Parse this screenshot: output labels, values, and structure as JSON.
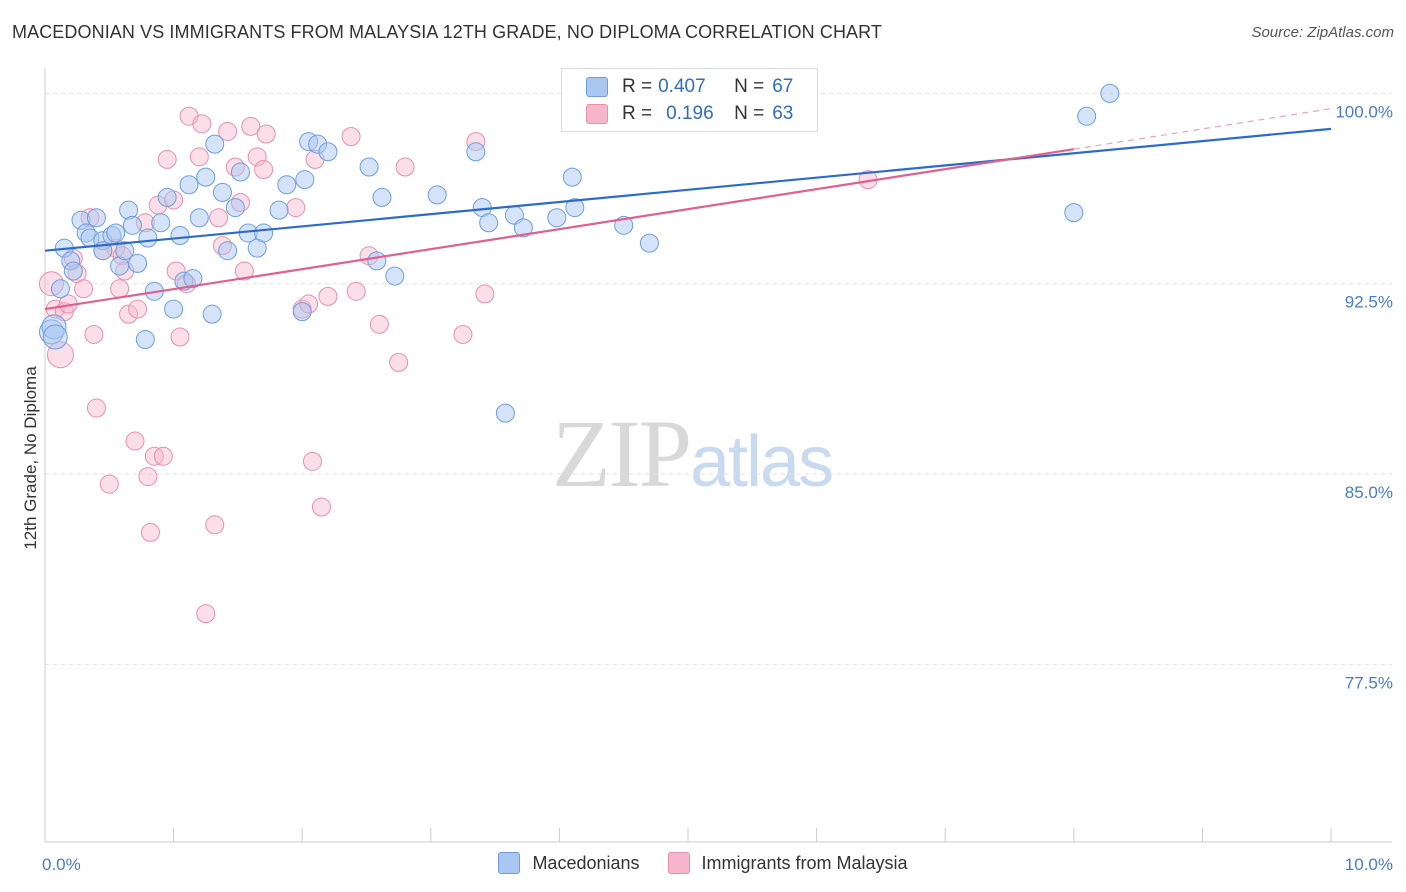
{
  "header": {
    "title": "MACEDONIAN VS IMMIGRANTS FROM MALAYSIA 12TH GRADE, NO DIPLOMA CORRELATION CHART",
    "source": "Source: ZipAtlas.com"
  },
  "watermark": {
    "zip": "ZIP",
    "atlas": "atlas"
  },
  "legend": {
    "rows": [
      {
        "r_label": "R =",
        "r_value": "0.407",
        "n_label": "N =",
        "n_value": "67",
        "color": "#a9c7f0"
      },
      {
        "r_label": "R =",
        "r_value": "0.196",
        "n_label": "N =",
        "n_value": "63",
        "color": "#f5b6cc"
      }
    ]
  },
  "bottom_legend": {
    "items": [
      {
        "label": "Macedonians",
        "color": "#a9c7f0"
      },
      {
        "label": "Immigrants from Malaysia",
        "color": "#f5b6cc"
      }
    ]
  },
  "colors": {
    "blue_fill": "#a9c7f0",
    "blue_stroke": "#6e9ee0",
    "blue_line": "#2b6cc9",
    "pink_fill": "#f5b6cc",
    "pink_stroke": "#ea8fae",
    "pink_line": "#e0608e",
    "grid": "#e2e2e2",
    "axis_label": "#4a7bc8"
  },
  "chart_data": {
    "type": "scatter",
    "title": "MACEDONIAN VS IMMIGRANTS FROM MALAYSIA 12TH GRADE, NO DIPLOMA CORRELATION CHART",
    "xlabel": "",
    "ylabel": "12th Grade, No Diploma",
    "xlim": [
      0,
      10
    ],
    "ylim": [
      70.5,
      101
    ],
    "x_tick_labels": [
      {
        "value": 0,
        "label": "0.0%"
      },
      {
        "value": 10,
        "label": "10.0%"
      }
    ],
    "y_tick_labels": [
      {
        "value": 100,
        "label": "100.0%"
      },
      {
        "value": 92.5,
        "label": "92.5%"
      },
      {
        "value": 85,
        "label": "85.0%"
      },
      {
        "value": 77.5,
        "label": "77.5%"
      }
    ],
    "series": [
      {
        "name": "Macedonians",
        "r": 0.407,
        "n": 67,
        "trend": {
          "x": [
            0,
            10
          ],
          "y": [
            93.8,
            98.6
          ]
        },
        "points": [
          [
            0.05,
            90.6
          ],
          [
            0.07,
            90.8
          ],
          [
            0.08,
            90.4
          ],
          [
            0.12,
            92.3
          ],
          [
            0.15,
            93.9
          ],
          [
            0.2,
            93.4
          ],
          [
            0.22,
            93.0
          ],
          [
            0.28,
            95.0
          ],
          [
            0.32,
            94.5
          ],
          [
            0.35,
            94.3
          ],
          [
            0.4,
            95.1
          ],
          [
            0.45,
            94.2
          ],
          [
            0.52,
            94.4
          ],
          [
            0.55,
            94.5
          ],
          [
            0.58,
            93.2
          ],
          [
            0.62,
            93.8
          ],
          [
            0.65,
            95.4
          ],
          [
            0.68,
            94.8
          ],
          [
            0.72,
            93.3
          ],
          [
            0.78,
            90.3
          ],
          [
            0.8,
            94.3
          ],
          [
            0.85,
            92.2
          ],
          [
            0.9,
            94.9
          ],
          [
            0.95,
            95.9
          ],
          [
            1.0,
            91.5
          ],
          [
            1.05,
            94.4
          ],
          [
            1.08,
            92.6
          ],
          [
            1.12,
            96.4
          ],
          [
            1.15,
            92.7
          ],
          [
            1.2,
            95.1
          ],
          [
            1.25,
            96.7
          ],
          [
            1.3,
            91.3
          ],
          [
            1.32,
            98.0
          ],
          [
            1.38,
            96.1
          ],
          [
            1.42,
            93.8
          ],
          [
            1.48,
            95.5
          ],
          [
            1.52,
            96.9
          ],
          [
            1.58,
            94.5
          ],
          [
            1.65,
            93.9
          ],
          [
            1.7,
            94.5
          ],
          [
            1.82,
            95.4
          ],
          [
            1.88,
            96.4
          ],
          [
            2.0,
            91.4
          ],
          [
            2.02,
            96.6
          ],
          [
            2.05,
            98.1
          ],
          [
            2.12,
            98.0
          ],
          [
            2.2,
            97.7
          ],
          [
            2.52,
            97.1
          ],
          [
            2.58,
            93.4
          ],
          [
            2.62,
            95.9
          ],
          [
            2.72,
            92.8
          ],
          [
            3.05,
            96.0
          ],
          [
            3.35,
            97.7
          ],
          [
            3.4,
            95.5
          ],
          [
            3.45,
            94.9
          ],
          [
            3.65,
            95.2
          ],
          [
            3.72,
            94.7
          ],
          [
            3.98,
            95.1
          ],
          [
            4.1,
            96.7
          ],
          [
            4.12,
            95.5
          ],
          [
            4.5,
            94.8
          ],
          [
            4.7,
            94.1
          ],
          [
            3.58,
            87.4
          ],
          [
            8.0,
            95.3
          ],
          [
            8.1,
            99.1
          ],
          [
            8.28,
            100.0
          ],
          [
            0.45,
            93.8
          ]
        ]
      },
      {
        "name": "Immigrants from Malaysia",
        "r": 0.196,
        "n": 63,
        "trend": {
          "x": [
            0,
            8.0
          ],
          "y": [
            91.5,
            97.8
          ]
        },
        "trend_extension": {
          "x": [
            8.0,
            10
          ],
          "y": [
            97.8,
            99.4
          ]
        },
        "points": [
          [
            0.05,
            92.5
          ],
          [
            0.08,
            91.5
          ],
          [
            0.12,
            89.7
          ],
          [
            0.15,
            91.4
          ],
          [
            0.18,
            91.7
          ],
          [
            0.22,
            93.5
          ],
          [
            0.25,
            92.9
          ],
          [
            0.3,
            92.3
          ],
          [
            0.35,
            95.1
          ],
          [
            0.38,
            90.5
          ],
          [
            0.4,
            87.6
          ],
          [
            0.45,
            93.8
          ],
          [
            0.5,
            84.6
          ],
          [
            0.55,
            93.9
          ],
          [
            0.58,
            92.3
          ],
          [
            0.6,
            93.6
          ],
          [
            0.62,
            93.0
          ],
          [
            0.65,
            91.3
          ],
          [
            0.7,
            86.3
          ],
          [
            0.72,
            91.5
          ],
          [
            0.78,
            94.9
          ],
          [
            0.8,
            84.9
          ],
          [
            0.82,
            82.7
          ],
          [
            0.85,
            85.7
          ],
          [
            0.88,
            95.6
          ],
          [
            0.92,
            85.7
          ],
          [
            0.95,
            97.4
          ],
          [
            1.0,
            95.8
          ],
          [
            1.02,
            93.0
          ],
          [
            1.05,
            90.4
          ],
          [
            1.1,
            92.5
          ],
          [
            1.12,
            99.1
          ],
          [
            1.2,
            97.5
          ],
          [
            1.22,
            98.8
          ],
          [
            1.25,
            79.5
          ],
          [
            1.32,
            83.0
          ],
          [
            1.35,
            95.1
          ],
          [
            1.38,
            94.0
          ],
          [
            1.42,
            98.5
          ],
          [
            1.48,
            97.1
          ],
          [
            1.52,
            95.7
          ],
          [
            1.55,
            93.0
          ],
          [
            1.6,
            98.7
          ],
          [
            1.65,
            97.5
          ],
          [
            1.7,
            97.0
          ],
          [
            1.72,
            98.4
          ],
          [
            1.95,
            95.5
          ],
          [
            2.0,
            91.5
          ],
          [
            2.05,
            91.7
          ],
          [
            2.08,
            85.5
          ],
          [
            2.1,
            97.4
          ],
          [
            2.15,
            83.7
          ],
          [
            2.2,
            92.0
          ],
          [
            2.38,
            98.3
          ],
          [
            2.42,
            92.2
          ],
          [
            2.52,
            93.6
          ],
          [
            2.6,
            90.9
          ],
          [
            2.75,
            89.4
          ],
          [
            2.8,
            97.1
          ],
          [
            3.25,
            90.5
          ],
          [
            3.35,
            98.1
          ],
          [
            3.42,
            92.1
          ],
          [
            6.4,
            96.6
          ]
        ]
      }
    ]
  }
}
